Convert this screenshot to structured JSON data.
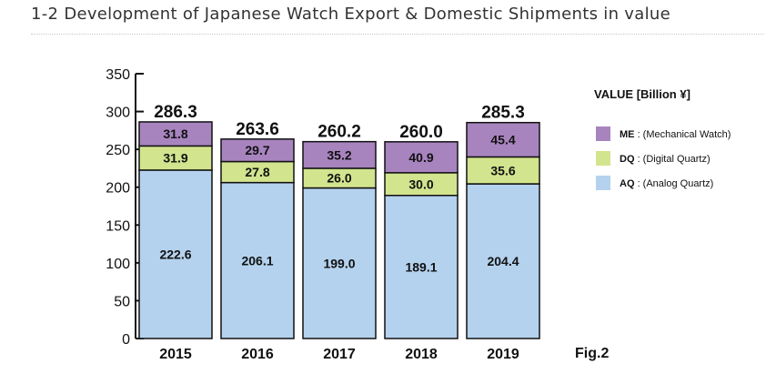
{
  "page": {
    "title": "1-2 Development of Japanese Watch Export & Domestic Shipments in value"
  },
  "chart_data": {
    "type": "bar",
    "stacked": true,
    "title": "1-2 Development of Japanese Watch Export & Domestic Shipments in value",
    "categories": [
      "2015",
      "2016",
      "2017",
      "2018",
      "2019"
    ],
    "series": [
      {
        "key": "AQ",
        "name": "AQ : (Analog Quartz)",
        "code": "AQ",
        "desc": ": (Analog Quartz)",
        "color": "#b4d2ee",
        "values": [
          222.6,
          206.1,
          199.0,
          189.1,
          204.4
        ],
        "labels": [
          "222.6",
          "206.1",
          "199.0",
          "189.1",
          "204.4"
        ]
      },
      {
        "key": "DQ",
        "name": "DQ : (Digital Quartz)",
        "code": "DQ",
        "desc": ": (Digital Quartz)",
        "color": "#d2e48e",
        "values": [
          31.9,
          27.8,
          26.0,
          30.0,
          35.6
        ],
        "labels": [
          "31.9",
          "27.8",
          "26.0",
          "30.0",
          "35.6"
        ]
      },
      {
        "key": "ME",
        "name": "ME : (Mechanical Watch)",
        "code": "ME",
        "desc": ": (Mechanical Watch)",
        "color": "#a884bf",
        "values": [
          31.8,
          29.7,
          35.2,
          40.9,
          45.4
        ],
        "labels": [
          "31.8",
          "29.7",
          "35.2",
          "40.9",
          "45.4"
        ]
      }
    ],
    "totals": [
      "286.3",
      "263.6",
      "260.2",
      "260.0",
      "285.3"
    ],
    "ylim": [
      0,
      350
    ],
    "yticks": [
      0,
      50,
      100,
      150,
      200,
      250,
      300,
      350
    ],
    "xlabel": "",
    "ylabel": "",
    "legend_title": "VALUE [Billion ¥]",
    "legend_position": "right",
    "figure_label": "Fig.2"
  }
}
